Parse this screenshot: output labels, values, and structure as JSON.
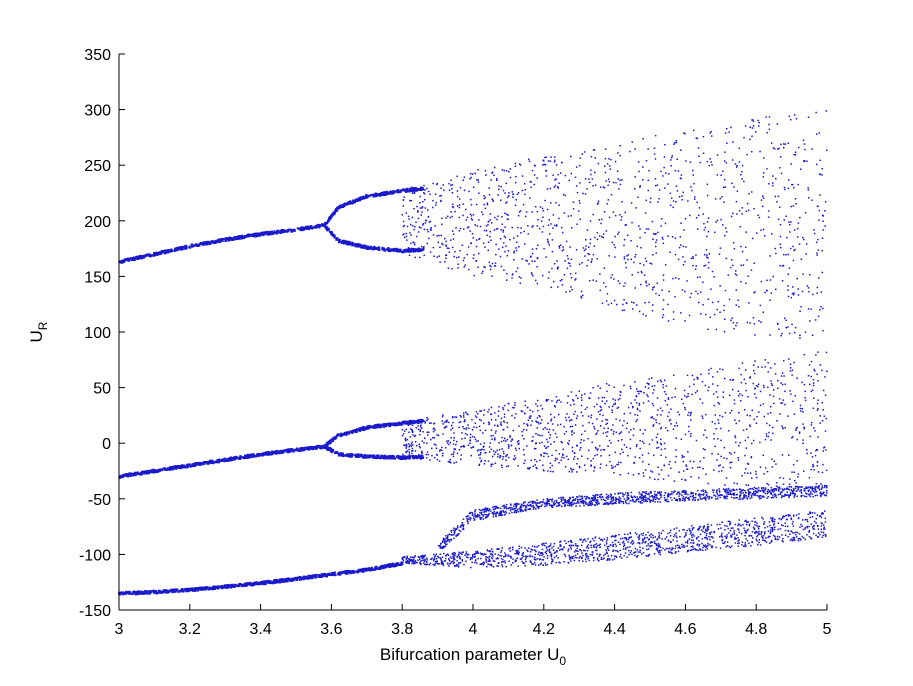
{
  "chart_data": {
    "type": "scatter",
    "title": "",
    "xlabel": "Bifurcation parameter U",
    "xlabel_subscript": "0",
    "ylabel": "U",
    "ylabel_subscript": "R",
    "xlim": [
      3,
      5
    ],
    "ylim": [
      -150,
      350
    ],
    "xticks": [
      "3",
      "3.2",
      "3.4",
      "3.6",
      "3.8",
      "4",
      "4.2",
      "4.4",
      "4.6",
      "4.8",
      "5"
    ],
    "yticks": [
      "-150",
      "-100",
      "-50",
      "0",
      "50",
      "100",
      "150",
      "200",
      "250",
      "300",
      "350"
    ],
    "grid": false,
    "legend": "none",
    "point_color": "#1a1acc",
    "series": [
      {
        "branches": [
          {
            "x": [
              3.0,
              3.1,
              3.2,
              3.3,
              3.4,
              3.5,
              3.58
            ],
            "y": [
              163,
              170,
              177,
              183,
              188,
              192,
              196
            ]
          },
          {
            "x": [
              3.0,
              3.1,
              3.2,
              3.3,
              3.4,
              3.5,
              3.58
            ],
            "y": [
              -30,
              -25,
              -20,
              -15,
              -10,
              -6,
              -3
            ]
          },
          {
            "x": [
              3.0,
              3.1,
              3.2,
              3.3,
              3.4,
              3.5,
              3.6,
              3.7,
              3.8
            ],
            "y": [
              -135,
              -134,
              -132,
              -129,
              -126,
              -122,
              -118,
              -114,
              -108
            ]
          },
          {
            "x": [
              3.58,
              3.62,
              3.7,
              3.8,
              3.86
            ],
            "y": [
              196,
              212,
              222,
              227,
              229
            ]
          },
          {
            "x": [
              3.58,
              3.62,
              3.7,
              3.8,
              3.86
            ],
            "y": [
              196,
              182,
              176,
              173,
              174
            ]
          },
          {
            "x": [
              3.58,
              3.62,
              3.7,
              3.8,
              3.86
            ],
            "y": [
              -3,
              7,
              14,
              18,
              20
            ]
          },
          {
            "x": [
              3.58,
              3.62,
              3.7,
              3.8,
              3.86
            ],
            "y": [
              -3,
              -10,
              -12,
              -13,
              -12
            ]
          }
        ],
        "chaotic_bands": [
          {
            "x": [
              3.8,
              4.0,
              4.2,
              4.4,
              4.6,
              4.8,
              5.0
            ],
            "y_min": [
              170,
              150,
              140,
              120,
              105,
              95,
              90
            ],
            "y_max": [
              229,
              245,
              258,
              270,
              282,
              293,
              302
            ]
          },
          {
            "x": [
              3.8,
              4.0,
              4.2,
              4.4,
              4.6,
              4.8,
              5.0
            ],
            "y_min": [
              -14,
              -20,
              -25,
              -30,
              -35,
              -40,
              -45
            ],
            "y_max": [
              20,
              30,
              42,
              55,
              65,
              75,
              83
            ]
          },
          {
            "x": [
              3.8,
              4.0,
              4.2,
              4.4,
              4.6,
              4.8,
              5.0
            ],
            "y_min": [
              -108,
              -112,
              -110,
              -105,
              -98,
              -92,
              -85
            ],
            "y_max": [
              -102,
              -97,
              -90,
              -82,
              -75,
              -67,
              -60
            ]
          },
          {
            "x": [
              3.9,
              4.0,
              4.2,
              4.4,
              4.6,
              4.8,
              5.0
            ],
            "y_min": [
              -100,
              -70,
              -58,
              -55,
              -52,
              -50,
              -48
            ],
            "y_max": [
              -90,
              -60,
              -50,
              -45,
              -42,
              -40,
              -38
            ]
          }
        ]
      }
    ]
  }
}
